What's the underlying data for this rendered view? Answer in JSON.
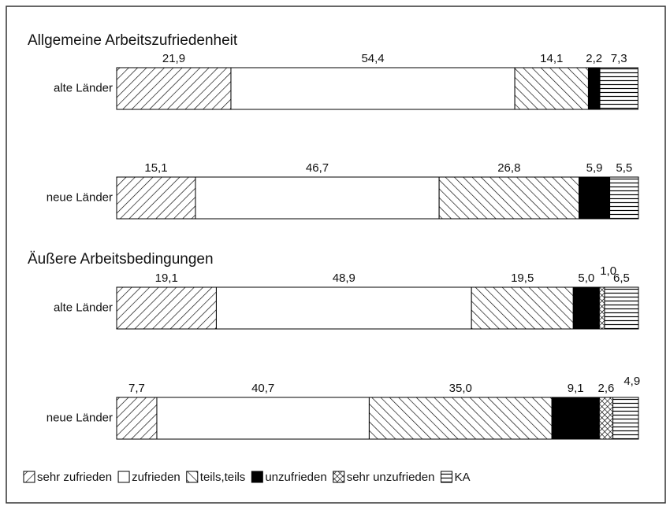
{
  "chart_data": [
    {
      "type": "stacked-bar-horizontal",
      "title": "Allgemeine Arbeitszufriedenheit",
      "categories": [
        "alte Länder",
        "neue Länder"
      ],
      "xlim": [
        0,
        100
      ],
      "series": [
        {
          "name": "sehr zufrieden",
          "color": "#000000",
          "pattern": "forward-diagonal",
          "values": [
            21.9,
            15.1
          ],
          "value_labels": [
            "21,9",
            "15,1"
          ]
        },
        {
          "name": "zufrieden",
          "color": "#ffffff",
          "pattern": "none",
          "values": [
            54.4,
            46.7
          ],
          "value_labels": [
            "54,4",
            "46,7"
          ]
        },
        {
          "name": "teils,teils",
          "color": "#000000",
          "pattern": "back-diagonal",
          "values": [
            14.1,
            26.8
          ],
          "value_labels": [
            "14,1",
            "26,8"
          ]
        },
        {
          "name": "unzufrieden",
          "color": "#000000",
          "pattern": "solid",
          "values": [
            2.2,
            5.9
          ],
          "value_labels": [
            "2,2",
            "5,9"
          ]
        },
        {
          "name": "sehr unzufrieden",
          "color": "#000000",
          "pattern": "crosshatch",
          "values": [
            null,
            null
          ],
          "value_labels": [
            null,
            null
          ]
        },
        {
          "name": "KA",
          "color": "#000000",
          "pattern": "horizontal",
          "values": [
            7.3,
            5.5
          ],
          "value_labels": [
            "7,3",
            "5,5"
          ]
        }
      ]
    },
    {
      "type": "stacked-bar-horizontal",
      "title": "Äußere Arbeitsbedingungen",
      "categories": [
        "alte Länder",
        "neue Länder"
      ],
      "xlim": [
        0,
        100
      ],
      "series": [
        {
          "name": "sehr zufrieden",
          "color": "#000000",
          "pattern": "forward-diagonal",
          "values": [
            19.1,
            7.7
          ],
          "value_labels": [
            "19,1",
            "7,7"
          ]
        },
        {
          "name": "zufrieden",
          "color": "#ffffff",
          "pattern": "none",
          "values": [
            48.9,
            40.7
          ],
          "value_labels": [
            "48,9",
            "40,7"
          ]
        },
        {
          "name": "teils,teils",
          "color": "#000000",
          "pattern": "back-diagonal",
          "values": [
            19.5,
            35.0
          ],
          "value_labels": [
            "19,5",
            "35,0"
          ]
        },
        {
          "name": "unzufrieden",
          "color": "#000000",
          "pattern": "solid",
          "values": [
            5.0,
            9.1
          ],
          "value_labels": [
            "5,0",
            "9,1"
          ]
        },
        {
          "name": "sehr unzufrieden",
          "color": "#000000",
          "pattern": "crosshatch",
          "values": [
            1.0,
            2.6
          ],
          "value_labels": [
            "1,0",
            "2,6"
          ]
        },
        {
          "name": "KA",
          "color": "#000000",
          "pattern": "horizontal",
          "values": [
            6.5,
            4.9
          ],
          "value_labels": [
            "6,5",
            "4,9"
          ]
        }
      ]
    }
  ]
}
